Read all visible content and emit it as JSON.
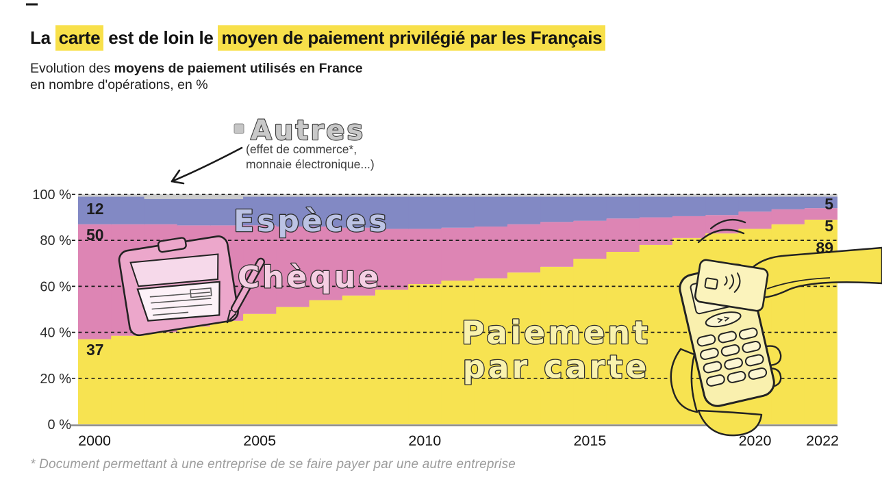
{
  "page": {
    "title_segments": [
      {
        "text": "La ",
        "highlight": false
      },
      {
        "text": "carte",
        "highlight": true
      },
      {
        "text": " est de loin le ",
        "highlight": false
      },
      {
        "text": "moyen de paiement privilégié par les Français",
        "highlight": true
      }
    ],
    "subtitle": {
      "prefix": "Evolution des ",
      "bold": "moyens de paiement utilisés en France",
      "line2": "en nombre d'opérations, en %"
    },
    "footnote": "* Document permettant à une entreprise de se faire payer par une autre entreprise"
  },
  "annotation": {
    "label": "Autres",
    "details": [
      "(effet de commerce*,",
      "monnaie électronique...)"
    ],
    "swatch_color": "#c6c6c6"
  },
  "colors": {
    "highlight": "#f8e04a",
    "carte": "#f7e351",
    "cheque": "#dd85b4",
    "especes": "#8289c4",
    "autres": "#cbcbcb",
    "carte_label_fill": "#f9f2ae",
    "cheque_label_fill": "#f5cfe3",
    "especes_label_fill": "#bcc3e4",
    "autres_label_fill": "#c9c9c9"
  },
  "chart_data": {
    "type": "bar",
    "stacked": true,
    "title": "Evolution des moyens de paiement utilisés en France",
    "ylabel": "en nombre d'opérations, en %",
    "ylim": [
      0,
      100
    ],
    "grid": true,
    "x": [
      2000,
      2001,
      2002,
      2003,
      2004,
      2005,
      2006,
      2007,
      2008,
      2009,
      2010,
      2011,
      2012,
      2013,
      2014,
      2015,
      2016,
      2017,
      2018,
      2019,
      2020,
      2021,
      2022
    ],
    "xticks": [
      "2000",
      "2005",
      "2010",
      "2015",
      "2020",
      "2022"
    ],
    "yticks": [
      "0 %",
      "20 %",
      "40 %",
      "60 %",
      "80 %",
      "100 %"
    ],
    "series": [
      {
        "name": "Paiement par carte",
        "color": "#f7e351",
        "values": [
          37,
          38.5,
          40,
          42.5,
          45,
          48,
          51,
          54,
          56,
          58.5,
          61,
          62.5,
          63.5,
          66,
          68.5,
          72,
          75,
          78,
          81,
          83,
          85,
          87,
          89
        ]
      },
      {
        "name": "Chèque",
        "color": "#dd85b4",
        "values": [
          50,
          48.5,
          47,
          44,
          41.5,
          38.5,
          35,
          32,
          29.5,
          26.5,
          24,
          23,
          22.5,
          21,
          19.5,
          16.5,
          14.5,
          12,
          9.5,
          8,
          7.5,
          6.5,
          5
        ]
      },
      {
        "name": "Espèces",
        "color": "#8289c4",
        "values": [
          12,
          12,
          11,
          11.5,
          11.5,
          12.5,
          13,
          13,
          13.5,
          14,
          14,
          13.5,
          13,
          12,
          11,
          10.5,
          9.5,
          9,
          8.5,
          8,
          6.5,
          5.5,
          5
        ]
      },
      {
        "name": "Autres",
        "color": "#cbcbcb",
        "values": [
          1,
          1,
          2,
          2,
          2,
          1,
          1,
          1,
          1,
          1,
          1,
          1,
          1,
          1,
          1,
          1,
          1,
          1,
          1,
          1,
          1,
          1,
          1
        ]
      }
    ],
    "band_labels": {
      "especes": "Espèces",
      "cheque": "Chèque",
      "carte_line1": "Paiement",
      "carte_line2": "par carte"
    },
    "value_labels": {
      "left": {
        "especes": "12",
        "cheque": "50",
        "carte": "37"
      },
      "right": {
        "especes": "5",
        "cheque": "5",
        "carte": "89"
      }
    }
  }
}
